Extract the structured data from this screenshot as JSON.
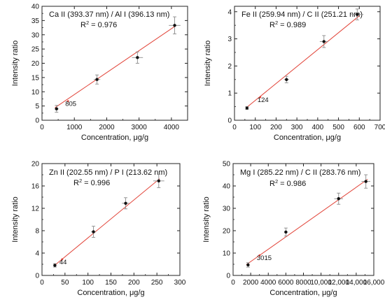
{
  "colors": {
    "fit_line": "#e2453a",
    "points": "#111111",
    "error_bars": "#8a8a8a",
    "axes": "#222222"
  },
  "chart_data": [
    {
      "type": "scatter",
      "title": "Ca II (393.37 nm) / Al I (396.13 nm)",
      "r2_label": "R",
      "r2_sup": "2",
      "r2_value": " = 0.976",
      "xlabel": "Concentration, μg/g",
      "ylabel": "Intensity ratio",
      "xlim": [
        0,
        4500
      ],
      "ylim": [
        0,
        40
      ],
      "xticks": [
        0,
        1000,
        2000,
        3000,
        4000
      ],
      "xtick_labels": [
        "0",
        "1000",
        "2000",
        "3000",
        "4000"
      ],
      "yticks": [
        0,
        5,
        10,
        15,
        20,
        25,
        30,
        35,
        40
      ],
      "ytick_labels": [
        "0",
        "5",
        "10",
        "15",
        "20",
        "25",
        "30",
        "35",
        "40"
      ],
      "points": [
        {
          "x": 450,
          "y": 4.0,
          "xerr": 60,
          "yerr": 1.2
        },
        {
          "x": 1700,
          "y": 14.3,
          "xerr": 100,
          "yerr": 1.6
        },
        {
          "x": 2950,
          "y": 22.0,
          "xerr": 170,
          "yerr": 2.0
        },
        {
          "x": 4100,
          "y": 33.3,
          "xerr": 180,
          "yerr": 3.0
        }
      ],
      "fit": {
        "x0": 400,
        "y0": 4.4,
        "x1": 4150,
        "y1": 33.3
      },
      "lod": {
        "x": 805,
        "y": 6.7,
        "label": "805"
      }
    },
    {
      "type": "scatter",
      "title": "Fe II (259.94 nm) / C II (251.21 nm)",
      "r2_label": "R",
      "r2_sup": "2",
      "r2_value": " = 0.989",
      "xlabel": "Concentration, μg/g",
      "ylabel": "Intensity ratio",
      "xlim": [
        0,
        700
      ],
      "ylim": [
        0,
        4.2
      ],
      "xticks": [
        0,
        100,
        200,
        300,
        400,
        500,
        600,
        700
      ],
      "xtick_labels": [
        "0",
        "100",
        "200",
        "300",
        "400",
        "500",
        "600",
        "700"
      ],
      "yticks": [
        0,
        1,
        2,
        3,
        4
      ],
      "ytick_labels": [
        "0",
        "1",
        "2",
        "3",
        "4"
      ],
      "points": [
        {
          "x": 60,
          "y": 0.45,
          "xerr": 6,
          "yerr": 0.05
        },
        {
          "x": 250,
          "y": 1.5,
          "xerr": 12,
          "yerr": 0.12
        },
        {
          "x": 430,
          "y": 2.9,
          "xerr": 20,
          "yerr": 0.22
        },
        {
          "x": 590,
          "y": 3.9,
          "xerr": 30,
          "yerr": 0.2
        }
      ],
      "fit": {
        "x0": 55,
        "y0": 0.45,
        "x1": 600,
        "y1": 3.85
      },
      "lod": {
        "x": 124,
        "y": 0.85,
        "label": "124"
      }
    },
    {
      "type": "scatter",
      "title": "Zn II (202.55 nm) / P I (213.62 nm)",
      "r2_label": "R",
      "r2_sup": "2",
      "r2_value": " = 0.996",
      "xlabel": "Concentration, μg/g",
      "ylabel": "Intensity ratio",
      "xlim": [
        0,
        300
      ],
      "ylim": [
        0,
        20
      ],
      "xticks": [
        0,
        50,
        100,
        150,
        200,
        250,
        300
      ],
      "xtick_labels": [
        "0",
        "50",
        "100",
        "150",
        "200",
        "250",
        "300"
      ],
      "yticks": [
        0,
        4,
        8,
        12,
        16,
        20
      ],
      "ytick_labels": [
        "0",
        "4",
        "8",
        "12",
        "16",
        "20"
      ],
      "points": [
        {
          "x": 28,
          "y": 1.8,
          "xerr": 3,
          "yerr": 0.3
        },
        {
          "x": 112,
          "y": 7.8,
          "xerr": 5,
          "yerr": 1.0
        },
        {
          "x": 182,
          "y": 12.9,
          "xerr": 8,
          "yerr": 1.0
        },
        {
          "x": 254,
          "y": 16.9,
          "xerr": 12,
          "yerr": 1.2
        }
      ],
      "fit": {
        "x0": 26,
        "y0": 1.7,
        "x1": 256,
        "y1": 17.3
      },
      "lod": {
        "x": 44,
        "y": 2.9,
        "label": "44"
      }
    },
    {
      "type": "scatter",
      "title": "Mg I (285.22 nm) / C II (283.76 nm)",
      "r2_label": "R",
      "r2_sup": "2",
      "r2_value": " = 0.986",
      "xlabel": "Concentration, μg/g",
      "ylabel": "Intensity ratio",
      "xlim": [
        0,
        16000
      ],
      "ylim": [
        0,
        50
      ],
      "xticks": [
        0,
        2000,
        4000,
        6000,
        8000,
        10000,
        12000,
        14000,
        16000
      ],
      "xtick_labels": [
        "0",
        "2000",
        "4000",
        "6000",
        "8000",
        "10,000",
        "12,000",
        "14,000",
        "16,000"
      ],
      "yticks": [
        0,
        10,
        20,
        30,
        40,
        50
      ],
      "ytick_labels": [
        "0",
        "10",
        "20",
        "30",
        "40",
        "50"
      ],
      "points": [
        {
          "x": 1700,
          "y": 4.7,
          "xerr": 100,
          "yerr": 1.0
        },
        {
          "x": 6000,
          "y": 19.4,
          "xerr": 200,
          "yerr": 1.8
        },
        {
          "x": 12000,
          "y": 34.3,
          "xerr": 500,
          "yerr": 2.5
        },
        {
          "x": 15100,
          "y": 42.0,
          "xerr": 500,
          "yerr": 3.0
        }
      ],
      "fit": {
        "x0": 1500,
        "y0": 4.8,
        "x1": 15300,
        "y1": 43.0
      },
      "lod": {
        "x": 3015,
        "y": 9.0,
        "label": "3015"
      }
    }
  ]
}
